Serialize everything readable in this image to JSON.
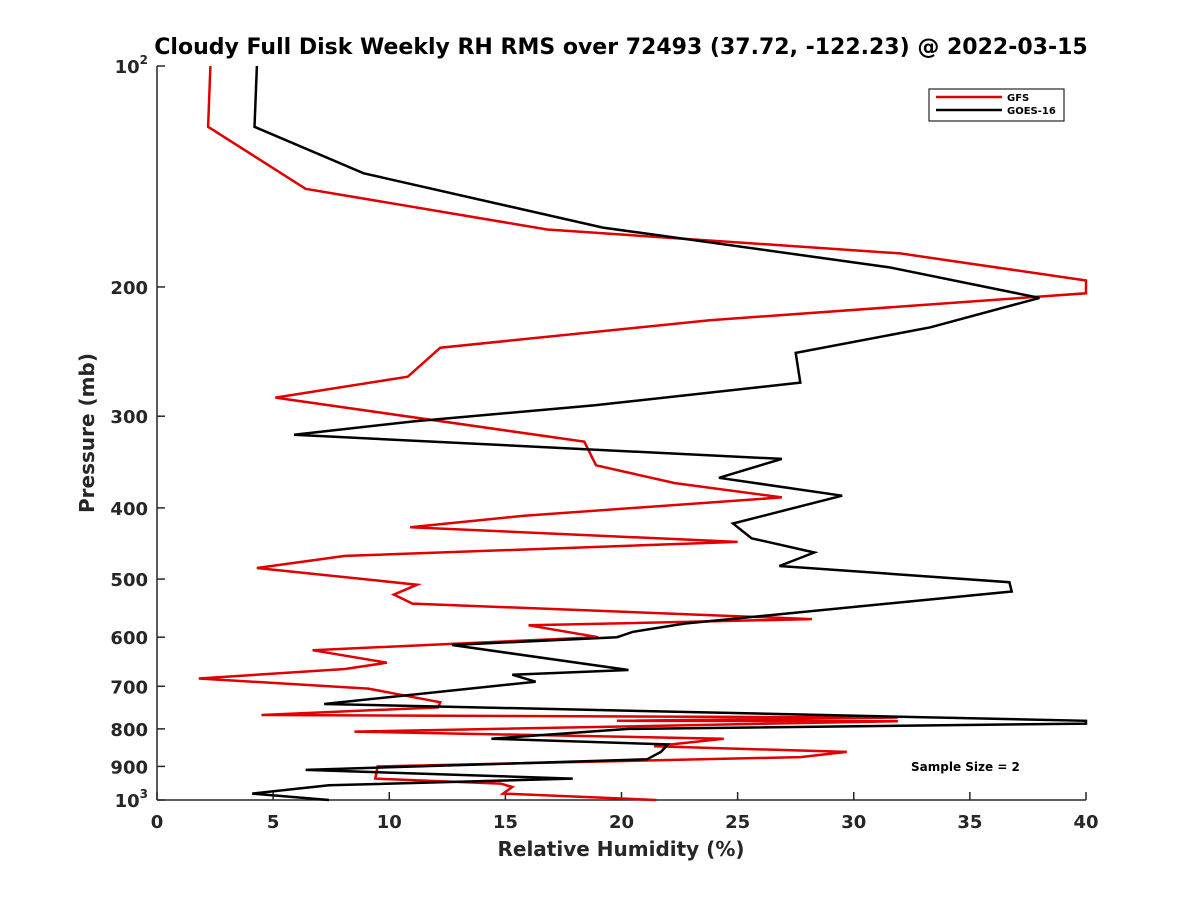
{
  "chart_data": {
    "type": "line",
    "title": "Cloudy Full Disk Weekly RH RMS over 72493 (37.72, -122.23) @ 2022-03-15",
    "xlabel": "Relative Humidity (%)",
    "ylabel": "Pressure (mb)",
    "xlim": [
      0,
      40
    ],
    "ylim": [
      100,
      1000
    ],
    "y_scale": "log",
    "y_reversed": true,
    "x_ticks": [
      "0",
      "5",
      "10",
      "15",
      "20",
      "25",
      "30",
      "35",
      "40"
    ],
    "y_ticks": [
      {
        "value": 100,
        "label": "10",
        "exp": "2"
      },
      {
        "value": 200,
        "label": "200",
        "exp": ""
      },
      {
        "value": 300,
        "label": "300",
        "exp": ""
      },
      {
        "value": 400,
        "label": "400",
        "exp": ""
      },
      {
        "value": 500,
        "label": "500",
        "exp": ""
      },
      {
        "value": 600,
        "label": "600",
        "exp": ""
      },
      {
        "value": 700,
        "label": "700",
        "exp": ""
      },
      {
        "value": 800,
        "label": "800",
        "exp": ""
      },
      {
        "value": 900,
        "label": "900",
        "exp": ""
      },
      {
        "value": 1000,
        "label": "10",
        "exp": "3"
      }
    ],
    "legend": {
      "placement": "top-right",
      "entries": [
        "GFS",
        "GOES-16"
      ]
    },
    "annotation": "Sample Size = 2",
    "grid": false,
    "series": [
      {
        "name": "GFS",
        "color": "#e00000",
        "points": [
          [
            2.3,
            100
          ],
          [
            2.2,
            121
          ],
          [
            6.4,
            147
          ],
          [
            16.8,
            167
          ],
          [
            32,
            180
          ],
          [
            40,
            196
          ],
          [
            40,
            204
          ],
          [
            23.8,
            222
          ],
          [
            12.2,
            242
          ],
          [
            10.8,
            265
          ],
          [
            5.1,
            283
          ],
          [
            18.4,
            325
          ],
          [
            18.9,
            350
          ],
          [
            22.3,
            370
          ],
          [
            26.9,
            387
          ],
          [
            15.8,
            410
          ],
          [
            10.9,
            425
          ],
          [
            25,
            445
          ],
          [
            8.1,
            465
          ],
          [
            4.3,
            483
          ],
          [
            11.2,
            509
          ],
          [
            10.2,
            525
          ],
          [
            11.0,
            540
          ],
          [
            28.2,
            567
          ],
          [
            16.0,
            578
          ],
          [
            19.0,
            600
          ],
          [
            6.7,
            625
          ],
          [
            9.9,
            650
          ],
          [
            8.1,
            663
          ],
          [
            1.8,
            683
          ],
          [
            9.1,
            705
          ],
          [
            12.2,
            736
          ],
          [
            12.1,
            748
          ],
          [
            4.5,
            766
          ],
          [
            31.9,
            772
          ],
          [
            19.8,
            780
          ],
          [
            31.9,
            781
          ],
          [
            8.5,
            807
          ],
          [
            24.4,
            825
          ],
          [
            21.4,
            845
          ],
          [
            29.7,
            860
          ],
          [
            27.7,
            874
          ],
          [
            9.5,
            900
          ],
          [
            9.4,
            935
          ],
          [
            14.8,
            950
          ],
          [
            15.3,
            960
          ],
          [
            14.9,
            980
          ],
          [
            21.5,
            1000
          ]
        ]
      },
      {
        "name": "GOES-16",
        "color": "#000000",
        "points": [
          [
            4.3,
            100
          ],
          [
            4.2,
            121
          ],
          [
            8.9,
            140
          ],
          [
            19.2,
            166
          ],
          [
            31.5,
            188
          ],
          [
            38.0,
            207
          ],
          [
            33.3,
            227
          ],
          [
            27.5,
            246
          ],
          [
            27.7,
            270
          ],
          [
            18.8,
            290
          ],
          [
            11.0,
            305
          ],
          [
            5.9,
            318
          ],
          [
            26.9,
            343
          ],
          [
            24.2,
            364
          ],
          [
            29.5,
            385
          ],
          [
            24.8,
            420
          ],
          [
            25.6,
            440
          ],
          [
            28.3,
            460
          ],
          [
            26.8,
            480
          ],
          [
            36.7,
            505
          ],
          [
            36.8,
            520
          ],
          [
            22.7,
            575
          ],
          [
            20.5,
            590
          ],
          [
            19.8,
            600
          ],
          [
            12.7,
            615
          ],
          [
            20.3,
            665
          ],
          [
            15.3,
            675
          ],
          [
            16.3,
            690
          ],
          [
            7.2,
            740
          ],
          [
            40,
            780
          ],
          [
            40,
            787
          ],
          [
            20.3,
            800
          ],
          [
            14.4,
            825
          ],
          [
            22.0,
            840
          ],
          [
            21.7,
            860
          ],
          [
            21.1,
            880
          ],
          [
            6.4,
            910
          ],
          [
            17.9,
            935
          ],
          [
            7.4,
            955
          ],
          [
            4.1,
            980
          ],
          [
            7.4,
            1000
          ]
        ]
      }
    ]
  }
}
